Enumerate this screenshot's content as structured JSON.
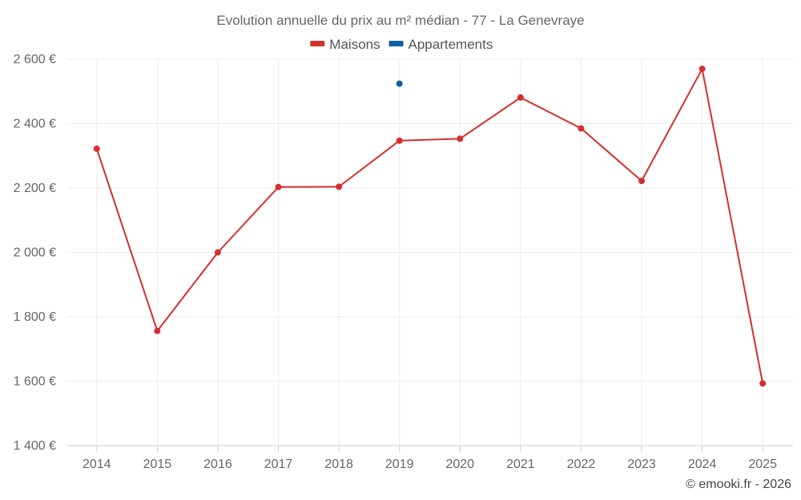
{
  "chart_data": {
    "type": "line",
    "title": "Evolution annuelle du prix au m² médian - 77 - La Genevraye",
    "xlabel": "",
    "ylabel": "",
    "categories": [
      "2014",
      "2015",
      "2016",
      "2017",
      "2018",
      "2019",
      "2020",
      "2021",
      "2022",
      "2023",
      "2024",
      "2025"
    ],
    "ylim": [
      1400,
      2600
    ],
    "yticks": [
      1400,
      1600,
      1800,
      2000,
      2200,
      2400,
      2600
    ],
    "ytick_labels": [
      "1 400 €",
      "1 600 €",
      "1 800 €",
      "2 000 €",
      "2 200 €",
      "2 400 €",
      "2 600 €"
    ],
    "grid": true,
    "legend_position": "top-center",
    "series": [
      {
        "name": "Maisons",
        "color": "#d32f2f",
        "values": [
          2322,
          1756,
          2000,
          2203,
          2204,
          2347,
          2353,
          2481,
          2385,
          2222,
          2570,
          1593
        ]
      },
      {
        "name": "Appartements",
        "color": "#0d5f9e",
        "values": [
          null,
          null,
          null,
          null,
          null,
          2524,
          null,
          null,
          null,
          null,
          null,
          null
        ]
      }
    ],
    "credit": "© emooki.fr - 2026"
  }
}
